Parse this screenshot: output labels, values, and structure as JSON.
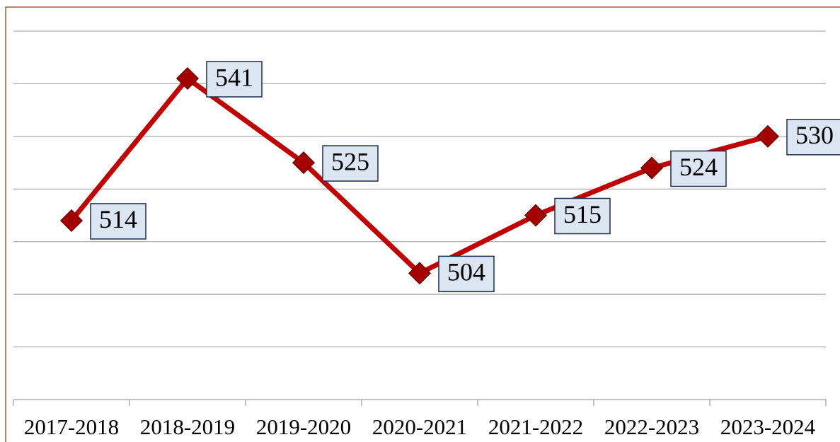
{
  "chart_data": {
    "type": "line",
    "categories": [
      "2017-2018",
      "2018-2019",
      "2019-2020",
      "2020-2021",
      "2021-2022",
      "2022-2023",
      "2023-2024"
    ],
    "values": [
      514,
      541,
      525,
      504,
      515,
      524,
      530
    ],
    "color": "#c00000",
    "ylim": [
      480,
      550
    ],
    "yticks": [
      480,
      490,
      500,
      510,
      520,
      530,
      540,
      550
    ],
    "grid": true
  }
}
